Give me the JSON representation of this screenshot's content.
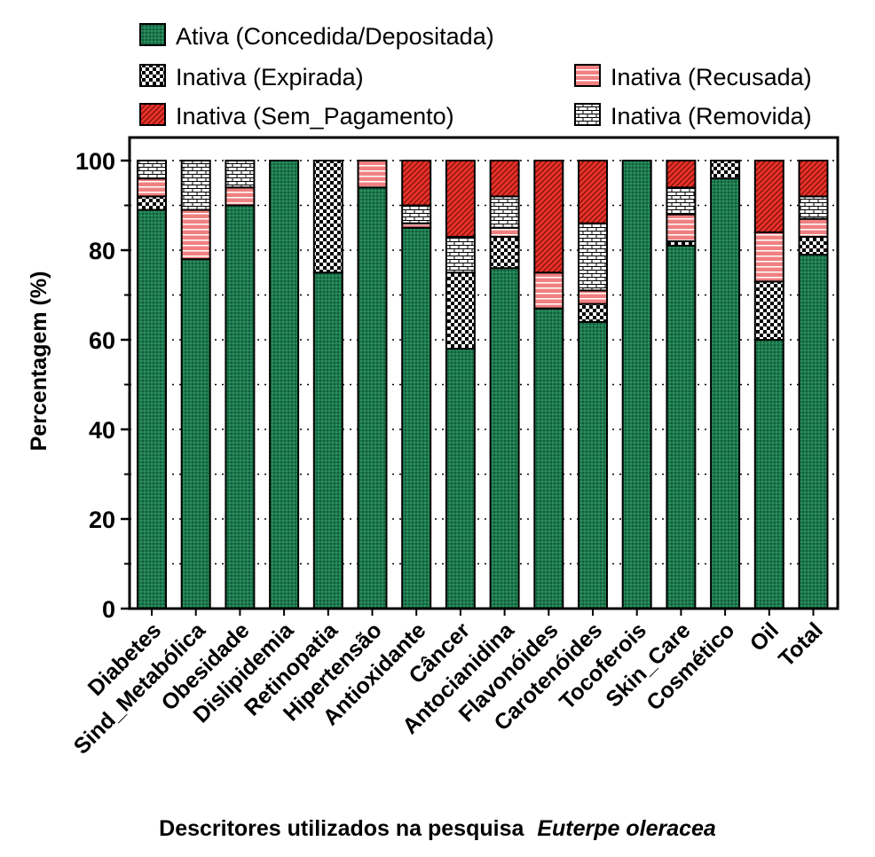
{
  "chart_data": {
    "type": "bar",
    "stacked": true,
    "xlabel": "Descritores utilizados na pesquisa",
    "xlabel_italic": "Euterpe oleracea",
    "ylabel": "Percentagem (%)",
    "ylim": [
      0,
      100
    ],
    "yticks": [
      0,
      20,
      40,
      60,
      80,
      100
    ],
    "grid": "horizontal dotted at 10% intervals",
    "legend_position": "top",
    "categories": [
      "Diabetes",
      "Sind_Metabólica",
      "Obesidade",
      "Dislipidemia",
      "Retinopatia",
      "Hipertensão",
      "Antioxidante",
      "Câncer",
      "Antocianidina",
      "Flavonóides",
      "Carotenóides",
      "Tocoferois",
      "Skin_Care",
      "Cosmético",
      "Oil",
      "Total"
    ],
    "series": [
      {
        "name": "Ativa (Concedida/Depositada)",
        "color": "#1e7a4f",
        "pattern": "fine-dots",
        "values": [
          89,
          78,
          90,
          100,
          75,
          94,
          85,
          58,
          76,
          67,
          64,
          100,
          81,
          96,
          60,
          79
        ]
      },
      {
        "name": "Inativa (Expirada)",
        "color": "#000000",
        "pattern": "checker",
        "values": [
          3,
          0,
          0,
          0,
          25,
          0,
          0,
          17,
          7,
          0,
          4,
          0,
          1,
          4,
          13,
          4
        ]
      },
      {
        "name": "Inativa (Recusada)",
        "color": "#f08080",
        "pattern": "horizontal-lines",
        "values": [
          4,
          11,
          4,
          0,
          0,
          6,
          1,
          0,
          2,
          8,
          3,
          0,
          6,
          0,
          11,
          4
        ]
      },
      {
        "name": "Inativa (Removida)",
        "color": "#ffffff",
        "pattern": "brick",
        "values": [
          4,
          11,
          6,
          0,
          0,
          0,
          4,
          8,
          7,
          0,
          15,
          0,
          6,
          0,
          0,
          5
        ]
      },
      {
        "name": "Inativa (Sem_Pagamento)",
        "color": "#e8322a",
        "pattern": "diagonal-lines",
        "values": [
          0,
          0,
          0,
          0,
          0,
          0,
          10,
          17,
          8,
          25,
          14,
          0,
          6,
          0,
          16,
          8
        ]
      }
    ],
    "legend": [
      {
        "label": "Ativa (Concedida/Depositada)",
        "series": 0
      },
      {
        "label": "Inativa (Expirada)",
        "series": 1
      },
      {
        "label": "Inativa (Sem_Pagamento)",
        "series": 4
      },
      {
        "label": "Inativa (Recusada)",
        "series": 2
      },
      {
        "label": "Inativa (Removida)",
        "series": 3
      }
    ]
  }
}
